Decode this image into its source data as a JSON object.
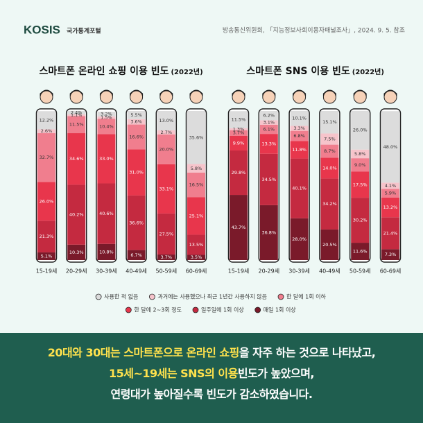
{
  "header": {
    "logo": "KOSIS",
    "logo_sub": "국가통계포털",
    "source": "방송통신위원회, 「지능정보사회이용자패널조사」, 2024. 9. 5. 참조"
  },
  "chart_data": [
    {
      "type": "stacked-bar",
      "title": "스마트폰 온라인 쇼핑 이용 빈도",
      "subtitle": "(2022년)",
      "ylim": [
        0,
        100
      ],
      "categories": [
        "15-19세",
        "20-29세",
        "30-39세",
        "40-49세",
        "50-59세",
        "60-69세"
      ],
      "series": [
        {
          "name": "매일 1회 이상",
          "color": "#7a1a2a",
          "values": [
            5.1,
            10.3,
            10.8,
            6.7,
            3.7,
            3.5
          ],
          "value_labels": [
            "5.1%",
            "10.3%",
            "10.8%",
            "6.7%",
            "3.7%",
            "3.5%"
          ]
        },
        {
          "name": "일주일에 1회 이상",
          "color": "#c42a40",
          "values": [
            21.3,
            40.2,
            40.6,
            36.6,
            27.5,
            13.5
          ],
          "value_labels": [
            "21.3%",
            "40.2%",
            "40.6%",
            "36.6%",
            "27.5%",
            "13.5%"
          ]
        },
        {
          "name": "한 달에 2~3회 정도",
          "color": "#e8364c",
          "values": [
            26.0,
            34.6,
            33.0,
            31.0,
            33.1,
            25.1
          ],
          "value_labels": [
            "26.0%",
            "34.6%",
            "33.0%",
            "31.0%",
            "33.1%",
            "25.1%"
          ]
        },
        {
          "name": "한 달에 1회 이하",
          "color": "#f07e8e",
          "values": [
            32.7,
            11.5,
            10.4,
            16.6,
            20.0,
            16.5
          ],
          "value_labels": [
            "32.7%",
            "11.5%",
            "10.4%",
            "16.6%",
            "20.0%",
            "16.5%"
          ]
        },
        {
          "name": "과거에는 사용했으나 최근 1년간 사용하지 않음",
          "color": "#f6c4cb",
          "values": [
            2.6,
            1.1,
            1.5,
            3.6,
            2.7,
            5.8
          ],
          "value_labels": [
            "2.6%",
            "1.1%",
            "1.5%",
            "3.6%",
            "2.7%",
            "5.8%"
          ]
        },
        {
          "name": "사용한 적 없음",
          "color": "#dcdcdc",
          "values": [
            12.2,
            2.4,
            3.2,
            5.5,
            13.0,
            35.6
          ],
          "value_labels": [
            "12.2%",
            "2.4%",
            "3.2%",
            "5.5%",
            "13.0%",
            "35.6%"
          ]
        }
      ]
    },
    {
      "type": "stacked-bar",
      "title": "스마트폰 SNS 이용 빈도",
      "subtitle": "(2022년)",
      "ylim": [
        0,
        100
      ],
      "categories": [
        "15-19세",
        "20-29세",
        "30-39세",
        "40-49세",
        "50-59세",
        "60-69세"
      ],
      "series": [
        {
          "color": "#7a1a2a",
          "values": [
            43.7,
            36.8,
            28.0,
            20.5,
            11.6,
            7.3
          ],
          "value_labels": [
            "43.7%",
            "36.8%",
            "28.0%",
            "20.5%",
            "11.6%",
            "7.3%"
          ]
        },
        {
          "color": "#c42a40",
          "values": [
            29.8,
            34.5,
            40.1,
            34.2,
            30.2,
            21.4
          ],
          "value_labels": [
            "29.8%",
            "34.5%",
            "40.1%",
            "34.2%",
            "30.2%",
            "21.4%"
          ]
        },
        {
          "color": "#e8364c",
          "values": [
            9.9,
            13.3,
            11.8,
            14.0,
            17.5,
            13.2
          ],
          "value_labels": [
            "9.9%",
            "13.3%",
            "11.8%",
            "14.0%",
            "17.5%",
            "13.2%"
          ]
        },
        {
          "color": "#f07e8e",
          "values": [
            3.7,
            6.1,
            6.8,
            8.7,
            9.0,
            5.9
          ],
          "value_labels": [
            "3.7%",
            "6.1%",
            "6.8%",
            "8.7%",
            "9.0%",
            "5.9%"
          ]
        },
        {
          "color": "#f6c4cb",
          "values": [
            1.3,
            3.1,
            3.3,
            7.5,
            5.8,
            4.1
          ],
          "value_labels": [
            "1.3%",
            "3.1%",
            "3.3%",
            "7.5%",
            "5.8%",
            "4.1%"
          ]
        },
        {
          "color": "#dcdcdc",
          "values": [
            11.5,
            6.2,
            10.1,
            15.1,
            26.0,
            48.0
          ],
          "value_labels": [
            "11.5%",
            "6.2%",
            "10.1%",
            "15.1%",
            "26.0%",
            "48.0%"
          ]
        }
      ]
    }
  ],
  "footer": {
    "lines": [
      [
        {
          "text": "20대와 30대는 스마트폰으로 온라인 쇼핑",
          "highlight": true
        },
        {
          "text": "을 자주 하는 것으로 나타났고,",
          "highlight": false
        }
      ],
      [
        {
          "text": "15세~19세는 SNS의 이용",
          "highlight": true
        },
        {
          "text": "빈도가 높았으며,",
          "highlight": false
        }
      ],
      [
        {
          "text": "연령대가 높아질수록 빈도가 감소하였습니다.",
          "highlight": false
        }
      ]
    ]
  }
}
